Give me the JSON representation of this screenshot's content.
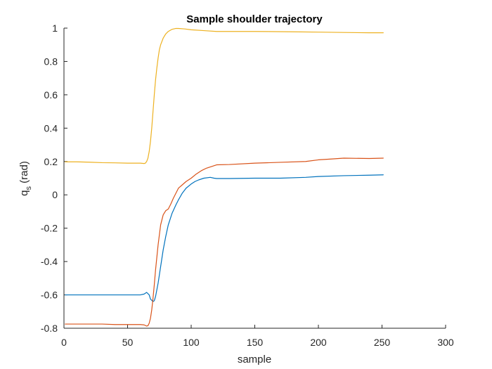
{
  "chart_data": {
    "type": "line",
    "title": "Sample shoulder trajectory",
    "xlabel": "sample",
    "ylabel_main": "q",
    "ylabel_sub": "s",
    "ylabel_suffix": " (rad)",
    "xlim": [
      0,
      300
    ],
    "ylim": [
      -0.8,
      1.0
    ],
    "xticks": [
      0,
      50,
      100,
      150,
      200,
      250,
      300
    ],
    "yticks": [
      -0.8,
      -0.6,
      -0.4,
      -0.2,
      0,
      0.2,
      0.4,
      0.6,
      0.8,
      1
    ],
    "xtick_labels": [
      "0",
      "50",
      "100",
      "150",
      "200",
      "250",
      "300"
    ],
    "ytick_labels": [
      "-0.8",
      "-0.6",
      "-0.4",
      "-0.2",
      "0",
      "0.2",
      "0.4",
      "0.6",
      "0.8",
      "1"
    ],
    "grid": false,
    "series": [
      {
        "color": "#0072BD",
        "x": [
          1,
          10,
          20,
          30,
          40,
          50,
          55,
          60,
          63,
          65,
          67,
          68,
          70,
          71,
          72,
          74,
          76,
          78,
          80,
          82,
          85,
          88,
          90,
          93,
          96,
          100,
          103,
          106,
          110,
          115,
          118,
          120,
          130,
          150,
          170,
          190,
          200,
          220,
          240,
          251
        ],
        "y": [
          -0.6,
          -0.6,
          -0.6,
          -0.6,
          -0.6,
          -0.6,
          -0.6,
          -0.6,
          -0.595,
          -0.585,
          -0.6,
          -0.625,
          -0.64,
          -0.635,
          -0.61,
          -0.53,
          -0.43,
          -0.33,
          -0.25,
          -0.18,
          -0.11,
          -0.06,
          -0.03,
          0.01,
          0.04,
          0.065,
          0.08,
          0.09,
          0.1,
          0.105,
          0.1,
          0.098,
          0.098,
          0.1,
          0.1,
          0.105,
          0.11,
          0.115,
          0.118,
          0.12
        ]
      },
      {
        "color": "#D95319",
        "x": [
          1,
          10,
          20,
          30,
          40,
          50,
          55,
          60,
          63,
          65,
          66,
          67,
          68,
          69,
          70,
          71,
          72,
          74,
          76,
          78,
          80,
          82,
          84,
          86,
          88,
          90,
          93,
          96,
          100,
          104,
          108,
          112,
          116,
          120,
          130,
          150,
          170,
          190,
          200,
          210,
          220,
          240,
          251
        ],
        "y": [
          -0.775,
          -0.775,
          -0.775,
          -0.775,
          -0.778,
          -0.778,
          -0.778,
          -0.778,
          -0.78,
          -0.787,
          -0.785,
          -0.77,
          -0.74,
          -0.69,
          -0.62,
          -0.54,
          -0.45,
          -0.3,
          -0.18,
          -0.12,
          -0.095,
          -0.085,
          -0.055,
          -0.02,
          0.01,
          0.04,
          0.06,
          0.08,
          0.1,
          0.125,
          0.145,
          0.16,
          0.17,
          0.18,
          0.182,
          0.19,
          0.195,
          0.2,
          0.21,
          0.215,
          0.22,
          0.218,
          0.22
        ]
      },
      {
        "color": "#EDB120",
        "x": [
          1,
          10,
          20,
          30,
          40,
          50,
          55,
          60,
          63,
          64,
          65,
          66,
          67,
          68,
          69,
          70,
          71,
          72,
          73,
          74,
          75,
          76,
          78,
          80,
          82,
          85,
          88,
          90,
          95,
          100,
          110,
          120,
          150,
          180,
          200,
          220,
          240,
          251
        ],
        "y": [
          0.198,
          0.198,
          0.196,
          0.193,
          0.192,
          0.19,
          0.19,
          0.19,
          0.188,
          0.19,
          0.2,
          0.22,
          0.26,
          0.32,
          0.4,
          0.5,
          0.6,
          0.69,
          0.76,
          0.82,
          0.87,
          0.9,
          0.94,
          0.965,
          0.98,
          0.993,
          0.998,
          0.998,
          0.995,
          0.99,
          0.985,
          0.98,
          0.98,
          0.978,
          0.976,
          0.974,
          0.972,
          0.972
        ]
      }
    ]
  }
}
